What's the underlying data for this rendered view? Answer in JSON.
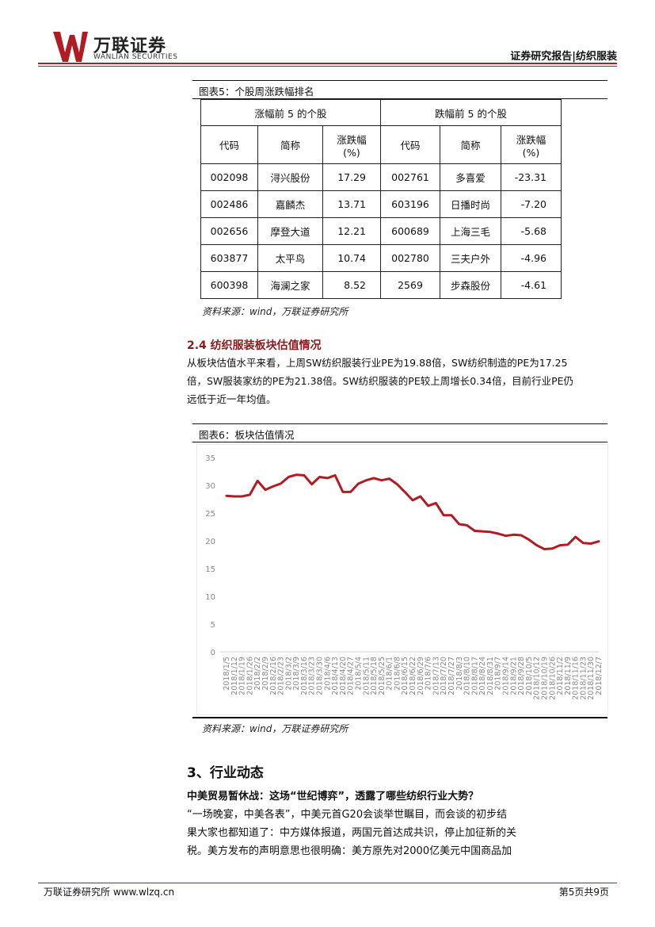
{
  "header": {
    "brand_cn": "万联证券",
    "brand_en": "WANLIAN SECURITIES",
    "report_label": "证券研究报告|纺织服装"
  },
  "figure5": {
    "caption": "图表5：个股周涨跌幅排名",
    "group_gainers": "涨幅前 5 的个股",
    "group_losers": "跌幅前 5 的个股",
    "col_code": "代码",
    "col_name": "简称",
    "col_change_1": "涨跌幅",
    "col_change_2": "(%)",
    "gainers": [
      {
        "code": "002098",
        "name": "浔兴股份",
        "change": "17.29"
      },
      {
        "code": "002486",
        "name": "嘉麟杰",
        "change": "13.71"
      },
      {
        "code": "002656",
        "name": "摩登大道",
        "change": "12.21"
      },
      {
        "code": "603877",
        "name": "太平鸟",
        "change": "10.74"
      },
      {
        "code": "600398",
        "name": "海澜之家",
        "change": "8.52"
      }
    ],
    "losers": [
      {
        "code": "002761",
        "name": "多喜爱",
        "change": "-23.31"
      },
      {
        "code": "603196",
        "name": "日播时尚",
        "change": "-7.20"
      },
      {
        "code": "600689",
        "name": "上海三毛",
        "change": "-5.68"
      },
      {
        "code": "002780",
        "name": "三夫户外",
        "change": "-4.96"
      },
      {
        "code": "2569",
        "name": "步森股份",
        "change": "-4.61"
      }
    ],
    "source": "资料来源：wind，万联证券研究所"
  },
  "section_24": {
    "title": "2.4 纺织服装板块估值情况",
    "lines": [
      "从板块估值水平来看，上周SW纺织服装行业PE为19.88倍，SW纺织制造的PE为17.25",
      "倍，SW服装家纺的PE为21.38倍。SW纺织服装的PE较上周增长0.34倍，目前行业PE仍",
      "远低于近一年均值。"
    ]
  },
  "figure6": {
    "caption": "图表6：板块估值情况",
    "source": "资料来源：wind，万联证券研究所",
    "line_color": "#b01c24"
  },
  "chart_data": {
    "type": "line",
    "title": "",
    "xlabel": "",
    "ylabel": "",
    "ylim": [
      0,
      35
    ],
    "yticks": [
      "0",
      "5",
      "10",
      "15",
      "20",
      "25",
      "30",
      "35"
    ],
    "grid": false,
    "x": [
      "2018/1/5",
      "2018/1/12",
      "2018/1/19",
      "2018/1/26",
      "2018/2/2",
      "2018/2/9",
      "2018/2/16",
      "2018/2/23",
      "2018/3/2",
      "2018/3/9",
      "2018/3/16",
      "2018/3/23",
      "2018/3/30",
      "2018/4/6",
      "2018/4/13",
      "2018/4/20",
      "2018/4/27",
      "2018/5/4",
      "2018/5/11",
      "2018/5/18",
      "2018/5/25",
      "2018/6/1",
      "2018/6/8",
      "2018/6/15",
      "2018/6/22",
      "2018/6/29",
      "2018/7/6",
      "2018/7/13",
      "2018/7/20",
      "2018/7/27",
      "2018/8/3",
      "2018/8/10",
      "2018/8/17",
      "2018/8/24",
      "2018/8/31",
      "2018/9/7",
      "2018/9/14",
      "2018/9/21",
      "2018/9/28",
      "2018/10/5",
      "2018/10/12",
      "2018/10/19",
      "2018/10/26",
      "2018/11/2",
      "2018/11/9",
      "2018/11/16",
      "2018/11/23",
      "2018/11/30",
      "2018/12/7"
    ],
    "series": [
      {
        "values": [
          28.1,
          28.0,
          28.0,
          28.3,
          30.8,
          29.2,
          29.8,
          30.3,
          31.5,
          31.9,
          31.8,
          30.2,
          31.5,
          31.3,
          31.8,
          28.8,
          28.8,
          30.3,
          30.9,
          31.3,
          30.9,
          31.2,
          30.2,
          28.8,
          27.3,
          28.0,
          26.3,
          26.8,
          24.6,
          24.6,
          23.0,
          22.8,
          21.8,
          21.7,
          21.6,
          21.3,
          20.9,
          21.1,
          21.0,
          20.2,
          19.2,
          18.5,
          18.6,
          19.2,
          19.3,
          20.7,
          19.6,
          19.5,
          19.9
        ]
      }
    ]
  },
  "section_3": {
    "title": "3、行业动态",
    "news_title": "中美贸易暂休战：这场“世纪博弈”，透露了哪些纺织行业大势？",
    "lines": [
      "“一场晚宴，中美各表”，中美元首G20会谈举世瞩目，而会谈的初步结",
      "果大家也都知道了：中方媒体报道，两国元首达成共识，停止加征新的关",
      "税。美方发布的声明意思也很明确：美方原先对2000亿美元中国商品加"
    ]
  },
  "footer": {
    "left": "万联证券研究所 www.wlzq.cn",
    "right": "第5页共9页"
  }
}
